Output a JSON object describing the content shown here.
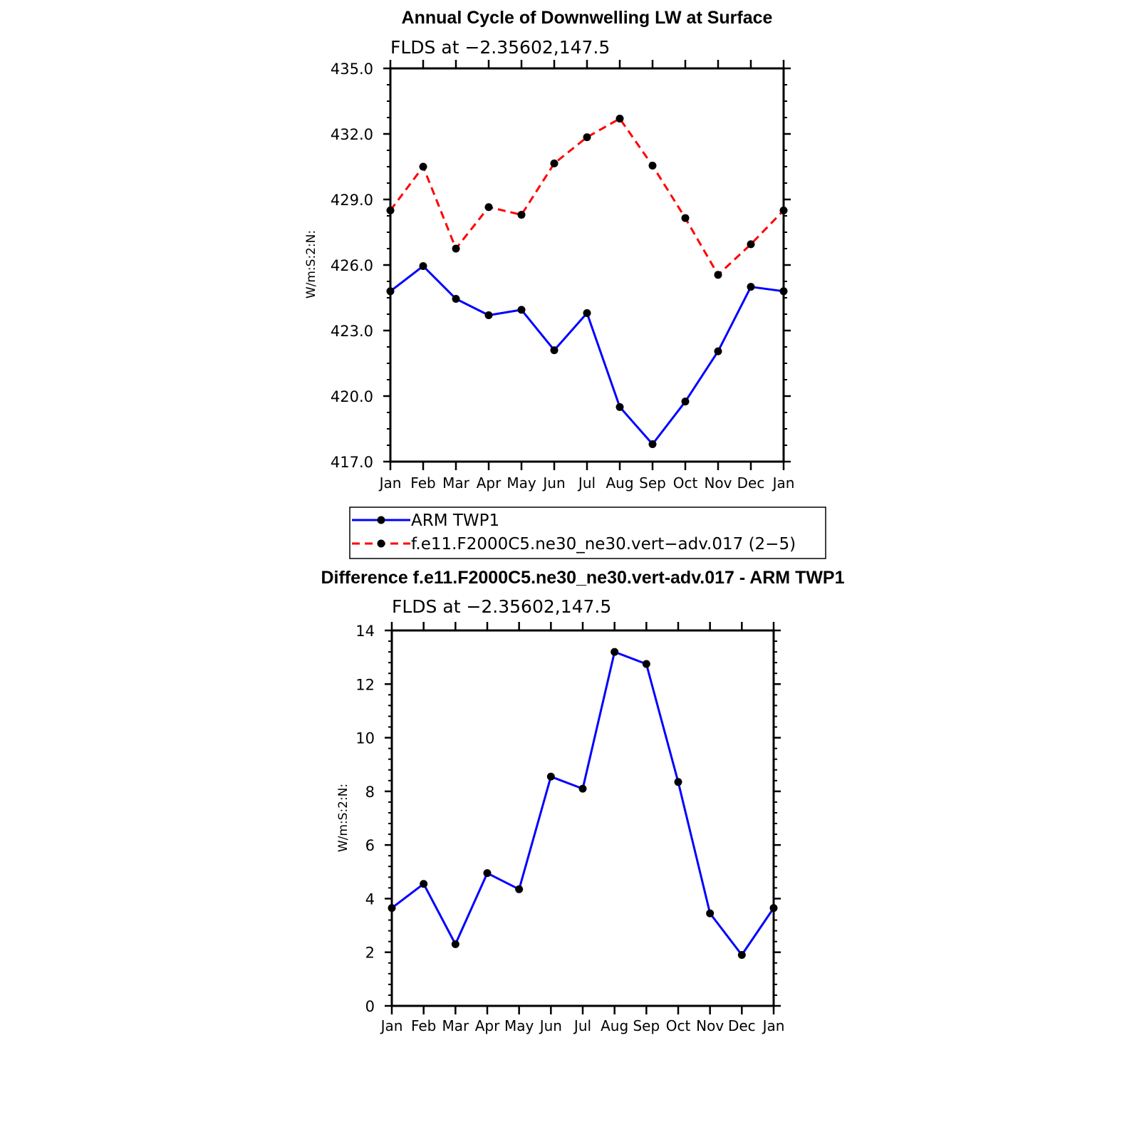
{
  "chart_data": [
    {
      "type": "line",
      "title": "Annual Cycle of Downwelling LW at Surface",
      "subtitle": "FLDS at −2.35602,147.5",
      "xlabel": "",
      "ylabel": "W/m:S:2:N:",
      "categories": [
        "Jan",
        "Feb",
        "Mar",
        "Apr",
        "May",
        "Jun",
        "Jul",
        "Aug",
        "Sep",
        "Oct",
        "Nov",
        "Dec",
        "Jan"
      ],
      "ylim": [
        417.0,
        435.0
      ],
      "yticks": [
        "417.0",
        "420.0",
        "423.0",
        "426.0",
        "429.0",
        "432.0",
        "435.0"
      ],
      "grid": false,
      "legend_position": "below",
      "series": [
        {
          "name": "ARM TWP1",
          "color": "#0000ff",
          "line_style": "solid",
          "marker": "filled-circle",
          "values": [
            424.8,
            425.95,
            424.45,
            423.7,
            423.95,
            422.1,
            423.8,
            419.5,
            417.8,
            419.75,
            422.05,
            425.0,
            424.8
          ]
        },
        {
          "name": "f.e11.F2000C5.ne30_ne30.vert−adv.017 (2−5)",
          "color": "#ff0000",
          "line_style": "dashed",
          "marker": "filled-circle",
          "values": [
            428.5,
            430.5,
            426.75,
            428.65,
            428.3,
            430.65,
            431.85,
            432.7,
            430.55,
            428.15,
            425.55,
            426.95,
            428.5
          ]
        }
      ]
    },
    {
      "type": "line",
      "title": "Difference f.e11.F2000C5.ne30_ne30.vert-adv.017 - ARM TWP1",
      "subtitle": "FLDS at −2.35602,147.5",
      "xlabel": "",
      "ylabel": "W/m:S:2:N:",
      "categories": [
        "Jan",
        "Feb",
        "Mar",
        "Apr",
        "May",
        "Jun",
        "Jul",
        "Aug",
        "Sep",
        "Oct",
        "Nov",
        "Dec",
        "Jan"
      ],
      "ylim": [
        0,
        14
      ],
      "yticks": [
        "0",
        "2",
        "4",
        "6",
        "8",
        "10",
        "12",
        "14"
      ],
      "grid": false,
      "series": [
        {
          "name": "",
          "color": "#0000ff",
          "line_style": "solid",
          "marker": "filled-circle",
          "values": [
            3.65,
            4.55,
            2.3,
            4.95,
            4.35,
            8.55,
            8.1,
            13.2,
            12.75,
            8.35,
            3.45,
            1.9,
            3.65
          ]
        }
      ]
    }
  ]
}
